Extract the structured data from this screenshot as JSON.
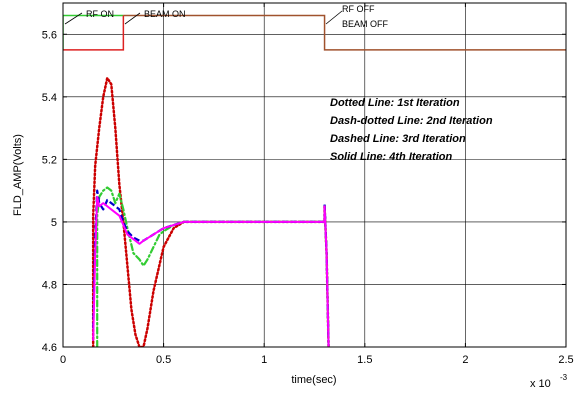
{
  "chart_data": {
    "type": "line",
    "title": "",
    "xlabel": "time(sec)",
    "ylabel": "FLD_AMP(Volts)",
    "x_multiplier": "x 10",
    "x_multiplier_exponent": "-3",
    "xlim": [
      0,
      2.5
    ],
    "ylim": [
      4.6,
      5.7
    ],
    "grid": true,
    "x_ticks": [
      0,
      0.5,
      1,
      1.5,
      2,
      2.5
    ],
    "x_tick_labels": [
      "0",
      "0.5",
      "1",
      "1.5",
      "2",
      "2.5"
    ],
    "y_ticks": [
      4.6,
      4.8,
      5.0,
      5.2,
      5.4,
      5.6
    ],
    "y_tick_labels": [
      "4.6",
      "4.8",
      "5",
      "5.2",
      "5.4",
      "5.6"
    ],
    "legend_lines": [
      "Dotted Line: 1st Iteration",
      "Dash-dotted Line: 2nd Iteration",
      "Dashed Line: 3rd Iteration",
      "Solid Line: 4th Iteration"
    ],
    "annotations": {
      "rf_on": "RF ON",
      "beam_on": "BEAM ON",
      "rf_off": "RF OFF",
      "beam_off": "BEAM OFF"
    },
    "timing_signals": [
      {
        "color": "#33cc33",
        "points": [
          [
            0,
            5.55
          ],
          [
            0,
            5.66
          ],
          [
            0.3,
            5.66
          ]
        ]
      },
      {
        "color": "#a0522d",
        "points": [
          [
            0.3,
            5.66
          ],
          [
            1.3,
            5.66
          ],
          [
            1.3,
            5.55
          ],
          [
            2.5,
            5.55
          ]
        ]
      },
      {
        "color": "#dd2222",
        "points": [
          [
            0,
            5.55
          ],
          [
            0.3,
            5.55
          ],
          [
            0.3,
            5.66
          ]
        ]
      }
    ],
    "series": [
      {
        "style": "dotted",
        "color": "#cc0000",
        "x": [
          0.15,
          0.15,
          0.16,
          0.18,
          0.2,
          0.22,
          0.24,
          0.26,
          0.28,
          0.3,
          0.32,
          0.34,
          0.36,
          0.38,
          0.4,
          0.42,
          0.45,
          0.5,
          0.55,
          0.6,
          0.65,
          0.7,
          1.3,
          1.3,
          1.31,
          1.32
        ],
        "y": [
          4.6,
          5.02,
          5.18,
          5.3,
          5.4,
          5.46,
          5.44,
          5.3,
          5.12,
          5.0,
          4.86,
          4.72,
          4.64,
          4.6,
          4.6,
          4.66,
          4.78,
          4.92,
          4.98,
          5.0,
          5.0,
          5.0,
          5.0,
          5.05,
          4.9,
          4.6
        ]
      },
      {
        "style": "dash-dot",
        "color": "#33cc33",
        "x": [
          0.17,
          0.17,
          0.18,
          0.2,
          0.22,
          0.24,
          0.26,
          0.28,
          0.3,
          0.32,
          0.35,
          0.38,
          0.4,
          0.42,
          0.45,
          0.48,
          0.5,
          0.55,
          0.6,
          0.65,
          1.3,
          1.3,
          1.31,
          1.32
        ],
        "y": [
          4.6,
          5.02,
          5.08,
          5.1,
          5.11,
          5.1,
          5.06,
          5.09,
          5.04,
          4.98,
          4.9,
          4.88,
          4.86,
          4.88,
          4.92,
          4.96,
          4.97,
          4.99,
          5.0,
          5.0,
          5.0,
          5.04,
          4.9,
          4.6
        ]
      },
      {
        "style": "dashed",
        "color": "#0000cc",
        "x": [
          0.15,
          0.16,
          0.17,
          0.18,
          0.2,
          0.22,
          0.24,
          0.26,
          0.28,
          0.3,
          0.32,
          0.35,
          0.38,
          0.4,
          0.45,
          0.5,
          0.55,
          0.6,
          1.3,
          1.3,
          1.31,
          1.32
        ],
        "y": [
          4.66,
          4.95,
          5.1,
          5.06,
          5.04,
          5.07,
          5.06,
          5.05,
          5.04,
          5.0,
          4.97,
          4.95,
          4.94,
          4.94,
          4.96,
          4.98,
          4.99,
          5.0,
          5.0,
          5.06,
          4.9,
          4.6
        ]
      },
      {
        "style": "solid",
        "color": "#ff00ff",
        "x": [
          0.15,
          0.16,
          0.17,
          0.18,
          0.2,
          0.22,
          0.24,
          0.26,
          0.28,
          0.3,
          0.32,
          0.34,
          0.36,
          0.38,
          0.4,
          0.45,
          0.5,
          0.55,
          0.6,
          0.65,
          1.3,
          1.3,
          1.31,
          1.32
        ],
        "y": [
          4.62,
          4.9,
          5.08,
          5.05,
          5.06,
          5.05,
          5.04,
          5.03,
          5.02,
          4.99,
          4.96,
          4.95,
          4.94,
          4.93,
          4.94,
          4.96,
          4.98,
          4.99,
          5.0,
          5.0,
          5.0,
          5.05,
          4.9,
          4.6
        ]
      }
    ]
  }
}
